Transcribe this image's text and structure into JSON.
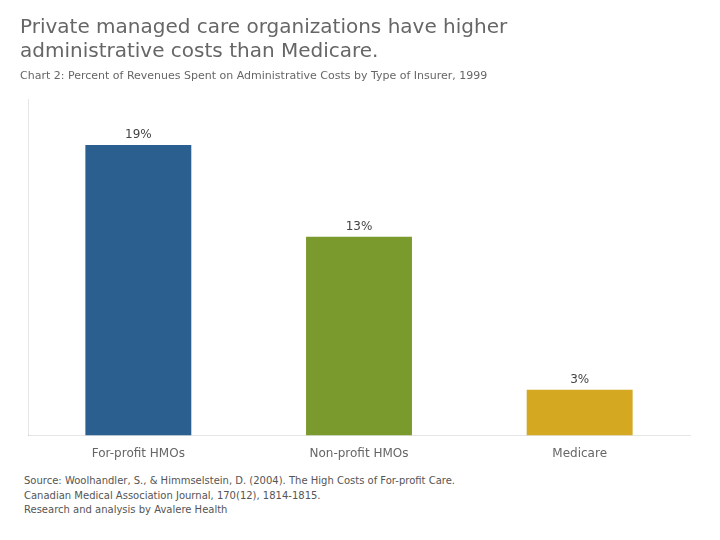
{
  "chart_data": {
    "type": "bar",
    "title": "Private managed care organizations have higher\nadministrative costs than Medicare.",
    "subtitle": "Chart 2: Percent of Revenues Spent on Administrative Costs by Type of Insurer, 1999",
    "categories": [
      "For-profit HMOs",
      "Non-profit HMOs",
      "Medicare"
    ],
    "values": [
      19,
      13,
      3
    ],
    "value_labels": [
      "19%",
      "13%",
      "3%"
    ],
    "data_labels": true,
    "colors": [
      "#2a5f8f",
      "#7a9a2e",
      "#d4a820"
    ],
    "ylim": [
      0,
      22
    ],
    "tick_labels": "x",
    "grid": false,
    "annotations": [
      "Source: Woolhandler, S., & Himmselstein, D. (2004). The High Costs of For-profit Care.",
      "Canadian Medical Association Journal, 170(12), 1814-1815.",
      "Research and analysis by Avalere Health"
    ]
  }
}
